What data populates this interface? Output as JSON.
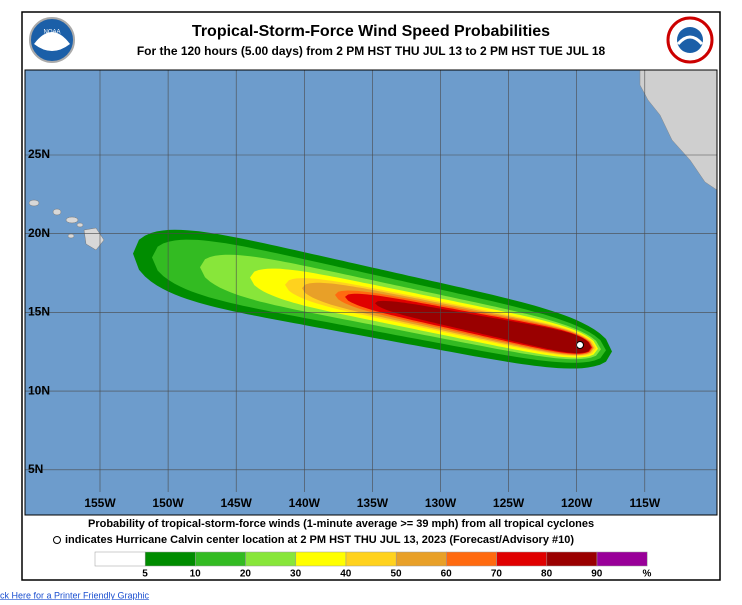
{
  "header": {
    "title": "Tropical-Storm-Force Wind Speed Probabilities",
    "subtitle": "For the 120 hours (5.00 days) from 2 PM HST THU JUL 13 to 2 PM HST TUE JUL 18"
  },
  "map": {
    "latitude_labels": [
      "25N",
      "20N",
      "15N",
      "10N",
      "5N"
    ],
    "longitude_labels": [
      "155W",
      "150W",
      "145W",
      "140W",
      "135W",
      "130W",
      "125W",
      "120W",
      "115W"
    ]
  },
  "footer": {
    "caption": "Probability of tropical-storm-force winds (1-minute average >= 39 mph) from all tropical cyclones",
    "center_note": "indicates Hurricane Calvin center location at 2 PM HST THU JUL 13, 2023 (Forecast/Advisory #10)",
    "legend": {
      "ticks": [
        5,
        10,
        20,
        30,
        40,
        50,
        60,
        70,
        80,
        90
      ],
      "unit": "%",
      "colors": [
        "#ffffff",
        "#008c00",
        "#33bb22",
        "#88e63a",
        "#ffff00",
        "#ffd21e",
        "#e8a028",
        "#ff6a10",
        "#e00000",
        "#9a0000",
        "#990099"
      ]
    }
  },
  "link": "ick Here for a Printer Friendly Graphic"
}
